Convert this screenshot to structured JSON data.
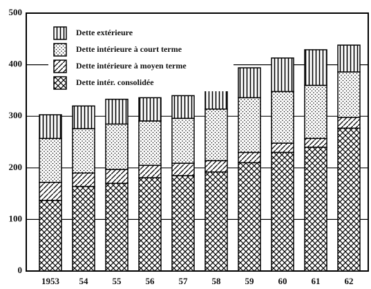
{
  "chart_data": {
    "type": "stacked_bar",
    "categories": [
      "1953",
      "54",
      "55",
      "56",
      "57",
      "58",
      "59",
      "60",
      "61",
      "62"
    ],
    "series": [
      {
        "name": "Dette intér. consolidée",
        "color": "#000",
        "pattern": "crosshatch",
        "values": [
          137,
          164,
          170,
          181,
          185,
          192,
          210,
          230,
          240,
          277
        ]
      },
      {
        "name": "Dette intérieure à moyen terme",
        "color": "#000",
        "pattern": "diagonal",
        "values": [
          35,
          26,
          27,
          24,
          24,
          22,
          20,
          18,
          17,
          21
        ]
      },
      {
        "name": "Dette intérieure à court terme",
        "color": "#000",
        "pattern": "dots",
        "values": [
          85,
          86,
          88,
          86,
          87,
          100,
          106,
          100,
          103,
          88
        ]
      },
      {
        "name": "Dette extérieure",
        "color": "#000",
        "pattern": "vertical",
        "values": [
          46,
          44,
          48,
          45,
          44,
          51,
          58,
          65,
          69,
          52
        ]
      }
    ],
    "ylim": [
      0,
      500
    ],
    "yticks": [
      0,
      100,
      200,
      300,
      400,
      500
    ],
    "grid": true,
    "legend": "top-left"
  }
}
